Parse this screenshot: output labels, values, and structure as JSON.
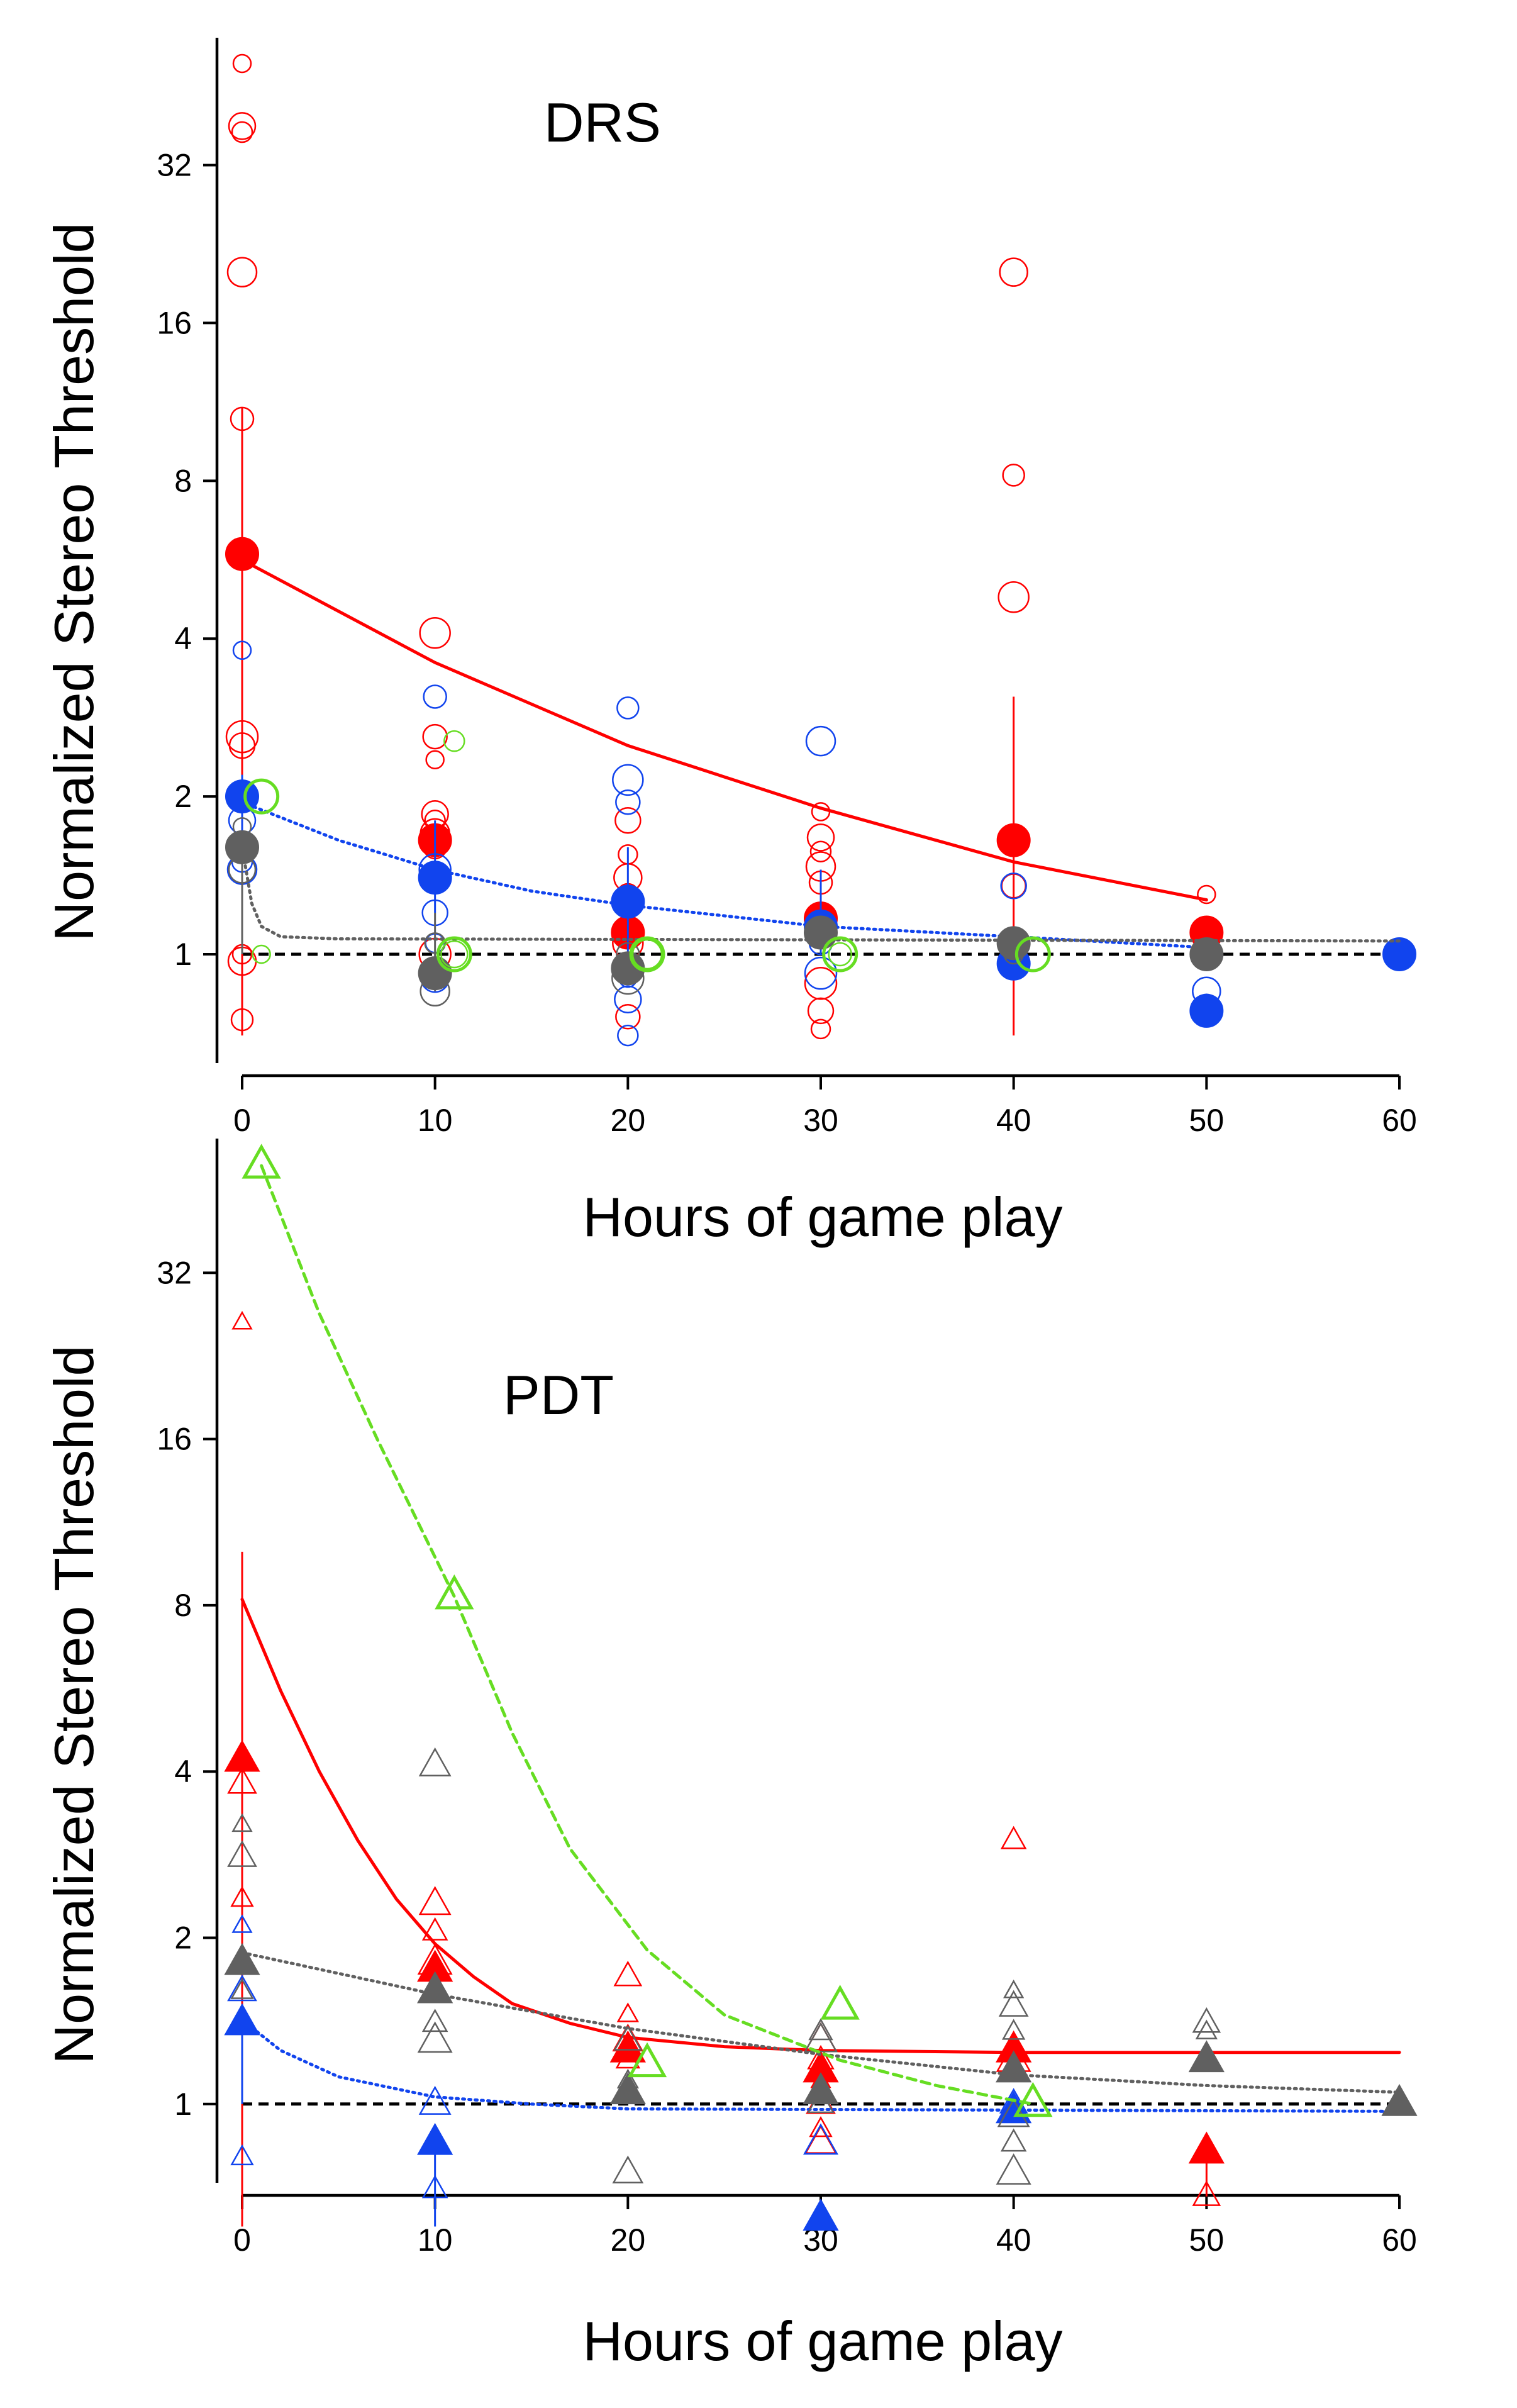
{
  "colors": {
    "red": "#ff0000",
    "blue": "#1144ee",
    "gray": "#606060",
    "green": "#66dd22",
    "ref": "#000000"
  },
  "chart_data": [
    {
      "type": "scatter",
      "title": "DRS",
      "xlabel": "Hours of game play",
      "ylabel": "Normalized Stereo Threshold",
      "x_ticks": [
        0,
        10,
        20,
        30,
        40,
        50,
        60
      ],
      "y_ticks": [
        1,
        2,
        4,
        8,
        16,
        32
      ],
      "y_scale": "log2",
      "xlim": [
        0,
        60
      ],
      "ylim": [
        0.62,
        56
      ],
      "marker": "circle",
      "reference_line": 1,
      "series": [
        {
          "color_key": "red",
          "mean_points": [
            [
              0,
              5.8
            ],
            [
              10,
              1.65
            ],
            [
              20,
              1.1
            ],
            [
              30,
              1.17
            ],
            [
              40,
              1.65
            ],
            [
              50,
              1.1
            ]
          ],
          "error_bars": [
            [
              0,
              0.7,
              11
            ],
            [
              40,
              0.7,
              3.1
            ]
          ],
          "individual_points": [
            [
              0,
              50
            ],
            [
              0,
              38
            ],
            [
              0,
              37
            ],
            [
              0,
              20
            ],
            [
              0,
              10.5
            ],
            [
              0,
              2.6
            ],
            [
              0,
              2.5
            ],
            [
              0,
              1.0
            ],
            [
              0,
              0.97
            ],
            [
              0,
              0.75
            ],
            [
              10,
              4.1
            ],
            [
              10,
              2.6
            ],
            [
              10,
              2.35
            ],
            [
              10,
              1.85
            ],
            [
              10,
              1.8
            ],
            [
              10,
              1.7
            ],
            [
              10,
              1.6
            ],
            [
              10,
              1.0
            ],
            [
              20,
              1.8
            ],
            [
              20,
              1.55
            ],
            [
              20,
              1.4
            ],
            [
              20,
              1.3
            ],
            [
              20,
              1.05
            ],
            [
              20,
              0.76
            ],
            [
              30,
              1.87
            ],
            [
              30,
              1.67
            ],
            [
              30,
              1.57
            ],
            [
              30,
              1.47
            ],
            [
              30,
              1.37
            ],
            [
              30,
              0.88
            ],
            [
              30,
              0.78
            ],
            [
              30,
              0.72
            ],
            [
              40,
              20
            ],
            [
              40,
              8.2
            ],
            [
              40,
              4.8
            ],
            [
              40,
              1.35
            ],
            [
              50,
              1.3
            ],
            [
              50,
              1.1
            ]
          ],
          "fit": {
            "style": "solid",
            "points": [
              [
                0,
                5.65
              ],
              [
                10,
                3.6
              ],
              [
                20,
                2.5
              ],
              [
                30,
                1.9
              ],
              [
                40,
                1.5
              ],
              [
                50,
                1.27
              ]
            ]
          }
        },
        {
          "color_key": "blue",
          "mean_points": [
            [
              0,
              2.0
            ],
            [
              10,
              1.4
            ],
            [
              20,
              1.26
            ],
            [
              30,
              1.13
            ],
            [
              40,
              0.96
            ],
            [
              50,
              0.78
            ],
            [
              60,
              1.0
            ]
          ],
          "error_bars": [
            [
              0,
              1.0,
              2.2
            ],
            [
              10,
              1.2,
              1.8
            ],
            [
              20,
              1.0,
              1.6
            ],
            [
              30,
              1.0,
              1.45
            ]
          ],
          "individual_points": [
            [
              0,
              3.8
            ],
            [
              0,
              1.8
            ],
            [
              0,
              1.5
            ],
            [
              0,
              1.45
            ],
            [
              10,
              3.1
            ],
            [
              10,
              1.45
            ],
            [
              10,
              1.2
            ],
            [
              10,
              1.05
            ],
            [
              10,
              0.9
            ],
            [
              20,
              2.95
            ],
            [
              20,
              2.15
            ],
            [
              20,
              1.95
            ],
            [
              20,
              0.9
            ],
            [
              20,
              0.82
            ],
            [
              20,
              0.7
            ],
            [
              30,
              2.55
            ],
            [
              30,
              1.05
            ],
            [
              30,
              0.92
            ],
            [
              40,
              1.35
            ],
            [
              40,
              0.98
            ],
            [
              50,
              0.85
            ],
            [
              50,
              0.8
            ],
            [
              60,
              1.0
            ]
          ],
          "fit": {
            "style": "dotted",
            "points": [
              [
                0,
                1.95
              ],
              [
                5,
                1.65
              ],
              [
                10,
                1.45
              ],
              [
                15,
                1.32
              ],
              [
                20,
                1.24
              ],
              [
                30,
                1.13
              ],
              [
                40,
                1.08
              ],
              [
                50,
                1.03
              ]
            ]
          }
        },
        {
          "color_key": "gray",
          "mean_points": [
            [
              0,
              1.6
            ],
            [
              10,
              0.92
            ],
            [
              20,
              0.94
            ],
            [
              30,
              1.1
            ],
            [
              40,
              1.05
            ],
            [
              50,
              1.0
            ]
          ],
          "error_bars": [
            [
              0,
              1.0,
              1.65
            ],
            [
              10,
              0.85,
              1.2
            ]
          ],
          "individual_points": [
            [
              0,
              1.75
            ],
            [
              0,
              1.45
            ],
            [
              10,
              1.05
            ],
            [
              10,
              0.85
            ],
            [
              20,
              1.0
            ],
            [
              20,
              0.9
            ],
            [
              30,
              1.1
            ],
            [
              40,
              1.0
            ],
            [
              50,
              1.0
            ]
          ],
          "fit": {
            "style": "dotted",
            "points": [
              [
                0,
                1.6
              ],
              [
                0.5,
                1.25
              ],
              [
                1,
                1.13
              ],
              [
                2,
                1.08
              ],
              [
                5,
                1.07
              ],
              [
                60,
                1.06
              ]
            ]
          }
        },
        {
          "color_key": "green",
          "mean_points": [
            [
              1,
              2.0
            ],
            [
              11,
              1.0
            ],
            [
              21,
              1.0
            ],
            [
              31,
              1.0
            ],
            [
              41,
              1.0
            ]
          ],
          "error_bars": [],
          "individual_points": [
            [
              1,
              1.0
            ],
            [
              11,
              1.0
            ],
            [
              11,
              2.55
            ],
            [
              21,
              1.0
            ],
            [
              31,
              1.0
            ],
            [
              41,
              1.0
            ]
          ],
          "fit": null
        }
      ]
    },
    {
      "type": "scatter",
      "title": "PDT",
      "xlabel": "Hours of game play",
      "ylabel": "Normalized Stereo Threshold",
      "x_ticks": [
        0,
        10,
        20,
        30,
        40,
        50,
        60
      ],
      "y_ticks": [
        1,
        2,
        4,
        8,
        16,
        32
      ],
      "y_scale": "log2",
      "xlim": [
        0,
        60
      ],
      "ylim": [
        0.72,
        56
      ],
      "marker": "triangle",
      "reference_line": 1,
      "series": [
        {
          "color_key": "red",
          "mean_points": [
            [
              0,
              4.2
            ],
            [
              10,
              1.75
            ],
            [
              20,
              1.25
            ],
            [
              30,
              1.15
            ],
            [
              40,
              1.25
            ],
            [
              50,
              0.82
            ]
          ],
          "error_bars": [
            [
              0,
              0.6,
              10
            ],
            [
              50,
              0.68,
              0.82
            ]
          ],
          "individual_points": [
            [
              0,
              26
            ],
            [
              0,
              3.8
            ],
            [
              0,
              2.35
            ],
            [
              10,
              2.3
            ],
            [
              10,
              2.05
            ],
            [
              10,
              1.8
            ],
            [
              20,
              1.7
            ],
            [
              20,
              1.45
            ],
            [
              20,
              1.3
            ],
            [
              20,
              1.2
            ],
            [
              30,
              1.3
            ],
            [
              30,
              1.2
            ],
            [
              30,
              1.1
            ],
            [
              30,
              1.0
            ],
            [
              30,
              0.9
            ],
            [
              30,
              0.85
            ],
            [
              40,
              3.0
            ],
            [
              40,
              1.2
            ],
            [
              50,
              0.68
            ]
          ],
          "fit": {
            "style": "solid",
            "points": [
              [
                0,
                8.2
              ],
              [
                2,
                5.6
              ],
              [
                4,
                4.0
              ],
              [
                6,
                3.0
              ],
              [
                8,
                2.35
              ],
              [
                10,
                1.95
              ],
              [
                12,
                1.7
              ],
              [
                14,
                1.52
              ],
              [
                17,
                1.4
              ],
              [
                20,
                1.32
              ],
              [
                25,
                1.27
              ],
              [
                30,
                1.25
              ],
              [
                40,
                1.24
              ],
              [
                60,
                1.24
              ]
            ]
          }
        },
        {
          "color_key": "blue",
          "mean_points": [
            [
              0,
              1.4
            ],
            [
              10,
              0.85
            ],
            [
              30,
              0.62
            ],
            [
              40,
              0.97
            ]
          ],
          "error_bars": [
            [
              0,
              1.0,
              1.5
            ],
            [
              10,
              0.6,
              0.9
            ]
          ],
          "individual_points": [
            [
              0,
              2.1
            ],
            [
              0,
              1.6
            ],
            [
              0,
              0.8
            ],
            [
              10,
              1.0
            ],
            [
              10,
              0.7
            ],
            [
              30,
              0.85
            ],
            [
              40,
              1.0
            ]
          ],
          "fit": {
            "style": "dotted",
            "points": [
              [
                0,
                1.42
              ],
              [
                2,
                1.25
              ],
              [
                5,
                1.12
              ],
              [
                10,
                1.03
              ],
              [
                15,
                1.0
              ],
              [
                20,
                0.98
              ],
              [
                60,
                0.97
              ]
            ]
          }
        },
        {
          "color_key": "gray",
          "mean_points": [
            [
              0,
              1.8
            ],
            [
              10,
              1.6
            ],
            [
              20,
              1.05
            ],
            [
              30,
              1.05
            ],
            [
              40,
              1.15
            ],
            [
              50,
              1.2
            ],
            [
              60,
              1.0
            ]
          ],
          "error_bars": [],
          "individual_points": [
            [
              0,
              3.2
            ],
            [
              0,
              2.8
            ],
            [
              0,
              1.6
            ],
            [
              10,
              4.1
            ],
            [
              10,
              1.4
            ],
            [
              10,
              1.3
            ],
            [
              20,
              1.3
            ],
            [
              20,
              1.1
            ],
            [
              20,
              0.75
            ],
            [
              30,
              1.35
            ],
            [
              30,
              1.3
            ],
            [
              30,
              1.0
            ],
            [
              40,
              1.6
            ],
            [
              40,
              1.5
            ],
            [
              40,
              1.35
            ],
            [
              40,
              0.95
            ],
            [
              40,
              0.85
            ],
            [
              40,
              0.75
            ],
            [
              50,
              1.4
            ],
            [
              50,
              1.35
            ],
            [
              60,
              1.0
            ]
          ],
          "fit": {
            "style": "dotted",
            "points": [
              [
                0,
                1.88
              ],
              [
                10,
                1.58
              ],
              [
                20,
                1.37
              ],
              [
                30,
                1.23
              ],
              [
                40,
                1.13
              ],
              [
                50,
                1.08
              ],
              [
                60,
                1.05
              ]
            ]
          }
        },
        {
          "color_key": "green",
          "mean_points": [
            [
              1,
              50
            ],
            [
              11,
              8.3
            ],
            [
              21,
              1.18
            ],
            [
              31,
              1.5
            ],
            [
              41,
              1.0
            ]
          ],
          "error_bars": [],
          "individual_points": [],
          "fit": {
            "style": "dashed",
            "points": [
              [
                1,
                50
              ],
              [
                4,
                27
              ],
              [
                7,
                16
              ],
              [
                11,
                8.3
              ],
              [
                14,
                4.7
              ],
              [
                17,
                2.9
              ],
              [
                21,
                1.9
              ],
              [
                25,
                1.45
              ],
              [
                31,
                1.2
              ],
              [
                36,
                1.08
              ],
              [
                41,
                1.0
              ]
            ]
          }
        }
      ]
    }
  ]
}
